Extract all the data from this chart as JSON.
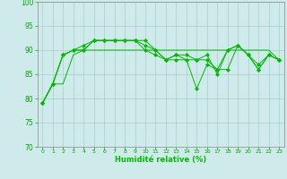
{
  "xlabel": "Humidité relative (%)",
  "background_color": "#ceeaea",
  "grid_color": "#aacece",
  "line_color": "#00bb00",
  "marker_color": "#00bb00",
  "ylim": [
    70,
    100
  ],
  "yticks": [
    70,
    75,
    80,
    85,
    90,
    95,
    100
  ],
  "xlim": [
    -0.5,
    23.5
  ],
  "xticks": [
    0,
    1,
    2,
    3,
    4,
    5,
    6,
    7,
    8,
    9,
    10,
    11,
    12,
    13,
    14,
    15,
    16,
    17,
    18,
    19,
    20,
    21,
    22,
    23
  ],
  "series": [
    [
      79,
      83,
      89,
      90,
      90,
      92,
      92,
      92,
      92,
      92,
      92,
      90,
      88,
      89,
      89,
      88,
      88,
      86,
      86,
      91,
      89,
      86,
      89,
      88
    ],
    [
      79,
      83,
      89,
      90,
      90,
      92,
      92,
      92,
      92,
      92,
      91,
      90,
      88,
      88,
      88,
      82,
      87,
      86,
      90,
      91,
      89,
      87,
      89,
      88
    ],
    [
      79,
      83,
      89,
      90,
      91,
      92,
      92,
      92,
      92,
      92,
      90,
      89,
      88,
      89,
      88,
      88,
      89,
      85,
      90,
      91,
      89,
      86,
      89,
      88
    ],
    [
      79,
      83,
      83,
      89,
      90,
      90,
      90,
      90,
      90,
      90,
      90,
      90,
      90,
      90,
      90,
      90,
      90,
      90,
      90,
      90,
      90,
      90,
      90,
      88
    ]
  ]
}
